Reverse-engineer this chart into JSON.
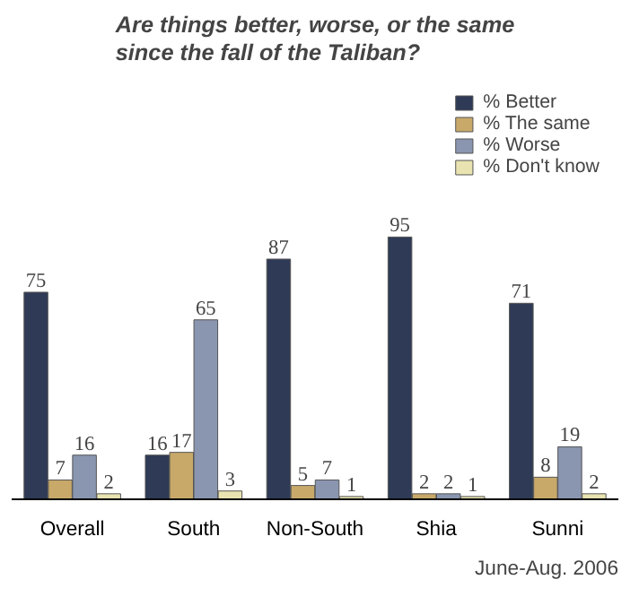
{
  "chart_data": {
    "type": "bar",
    "title": "Are things better, worse, or the same since the fall of the Taliban?",
    "categories": [
      "Overall",
      "South",
      "Non-South",
      "Shia",
      "Sunni"
    ],
    "series": [
      {
        "name": "% Better",
        "color": "#2e3a56",
        "values": [
          75,
          16,
          87,
          95,
          71
        ]
      },
      {
        "name": "% The same",
        "color": "#c8a96a",
        "values": [
          7,
          17,
          5,
          2,
          8
        ]
      },
      {
        "name": "% Worse",
        "color": "#8a96b0",
        "values": [
          16,
          65,
          7,
          2,
          19
        ]
      },
      {
        "name": "% Don't know",
        "color": "#e8e3b0",
        "values": [
          2,
          3,
          1,
          1,
          2
        ]
      }
    ],
    "tick_labels": "x",
    "data_labels": true,
    "legend": "top right",
    "grid": false,
    "annotations": [
      "June-Aug. 2006"
    ]
  }
}
